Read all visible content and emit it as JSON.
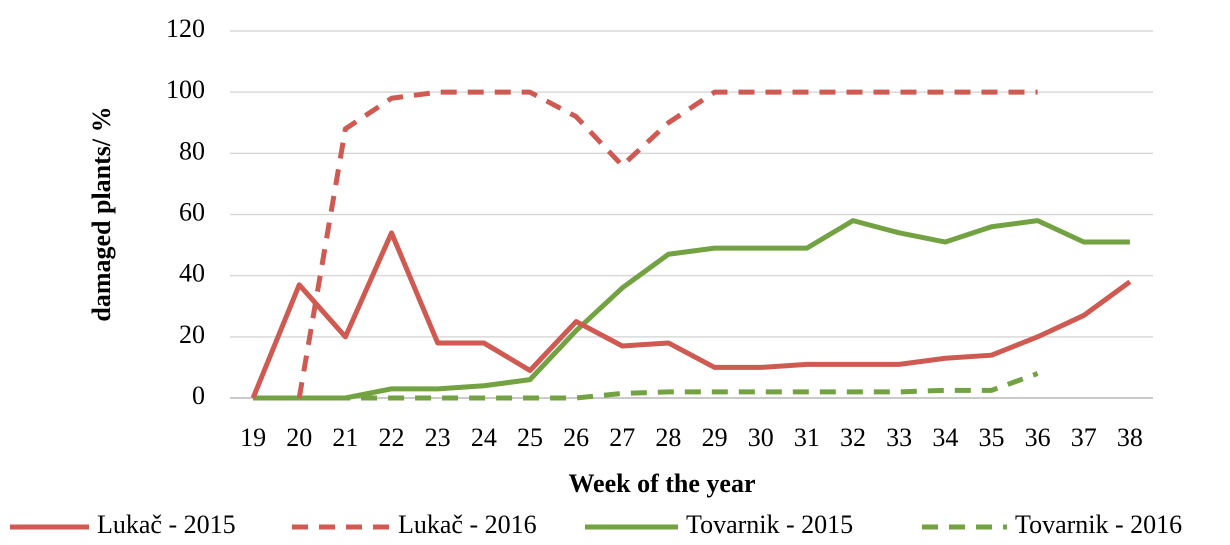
{
  "chart_data": {
    "type": "line",
    "x_label": "Week of the year",
    "y_label": "damaged plants/ %",
    "categories": [
      19,
      20,
      21,
      22,
      23,
      24,
      25,
      26,
      27,
      28,
      29,
      30,
      31,
      32,
      33,
      34,
      35,
      36,
      37,
      38
    ],
    "series": [
      {
        "name": "Lukač - 2015",
        "color": "#cf5a52",
        "dashed": false,
        "values": [
          0,
          37,
          20,
          54,
          18,
          18,
          9,
          25,
          17,
          18,
          10,
          10,
          11,
          11,
          11,
          13,
          14,
          20,
          27,
          38
        ]
      },
      {
        "name": "Lukač - 2016",
        "color": "#cf5a52",
        "dashed": true,
        "values": [
          null,
          0,
          88,
          98,
          100,
          100,
          100,
          92,
          76,
          90,
          100,
          100,
          100,
          100,
          100,
          100,
          100,
          100,
          null,
          null
        ]
      },
      {
        "name": "Tovarnik - 2015",
        "color": "#72a242",
        "dashed": false,
        "values": [
          0,
          0,
          0,
          3,
          3,
          4,
          6,
          22,
          36,
          47,
          49,
          49,
          49,
          58,
          54,
          51,
          56,
          58,
          51,
          51
        ]
      },
      {
        "name": "Tovarnik - 2016",
        "color": "#72a242",
        "dashed": true,
        "values": [
          0,
          0,
          0,
          0,
          0,
          0,
          0,
          0,
          1.5,
          2,
          2,
          2,
          2,
          2,
          2,
          2.5,
          2.5,
          8,
          null,
          null
        ]
      }
    ],
    "ylim": [
      0,
      120
    ],
    "yticks": [
      0,
      20,
      40,
      60,
      80,
      100,
      120
    ],
    "grid": true,
    "legend": "bottom"
  }
}
